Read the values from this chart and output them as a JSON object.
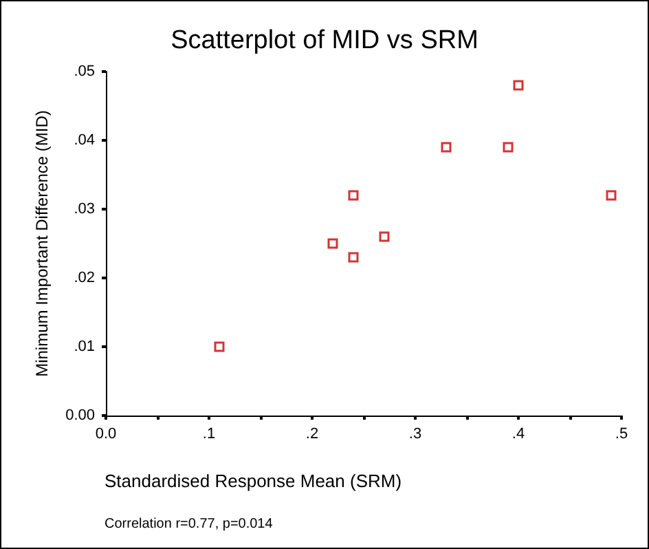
{
  "chart_data": {
    "type": "scatter",
    "title": "Scatterplot of MID vs SRM",
    "xlabel": "Standardised Response Mean (SRM)",
    "ylabel": "Minimum Important Difference (MID)",
    "annotations": [
      "Correlation r=0.77, p=0.014"
    ],
    "x": [
      0.11,
      0.22,
      0.24,
      0.24,
      0.27,
      0.33,
      0.39,
      0.4,
      0.49
    ],
    "series": [
      {
        "color": "#cc0000",
        "values": [
          0.01,
          0.025,
          0.032,
          0.023,
          0.026,
          0.039,
          0.039,
          0.048,
          0.032
        ]
      }
    ],
    "marker": "square",
    "xlim": [
      0,
      0.5
    ],
    "xticks": [
      {
        "value": 0,
        "label": "0.0"
      },
      {
        "value": 0.05,
        "label": null
      },
      {
        "value": 0.1,
        "label": ".1"
      },
      {
        "value": 0.15,
        "label": null
      },
      {
        "value": 0.2,
        "label": ".2"
      },
      {
        "value": 0.25,
        "label": null
      },
      {
        "value": 0.3,
        "label": ".3"
      },
      {
        "value": 0.35,
        "label": null
      },
      {
        "value": 0.4,
        "label": ".4"
      },
      {
        "value": 0.45,
        "label": null
      },
      {
        "value": 0.5,
        "label": ".5"
      }
    ],
    "ylim": [
      0,
      0.05
    ],
    "yticks": [
      {
        "value": 0,
        "label": "0.00"
      },
      {
        "value": 0.01,
        "label": ".01"
      },
      {
        "value": 0.02,
        "label": ".02"
      },
      {
        "value": 0.03,
        "label": ".03"
      },
      {
        "value": 0.04,
        "label": ".04"
      },
      {
        "value": 0.05,
        "label": ".05"
      }
    ],
    "grid": false
  }
}
